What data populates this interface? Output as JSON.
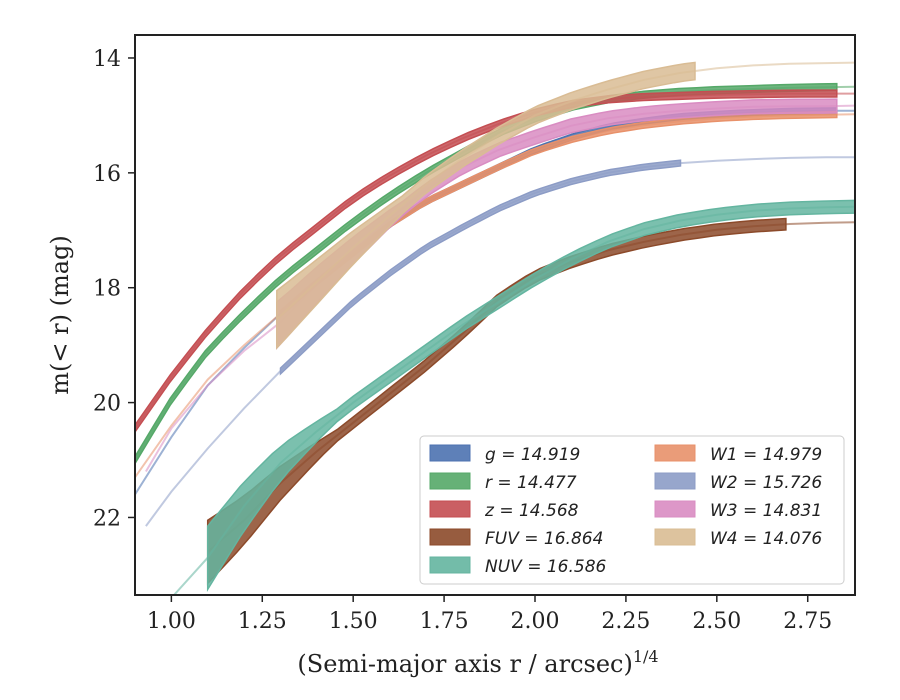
{
  "chart_data": {
    "type": "line",
    "xlabel": "(Semi-major axis r / arcsec)",
    "xlabel_exponent": "1/4",
    "ylabel": "m(< r) (mag)",
    "xlim": [
      0.9,
      2.88
    ],
    "ylim": [
      23.35,
      13.6
    ],
    "y_inverted": true,
    "x_ticks": [
      "1.00",
      "1.25",
      "1.50",
      "1.75",
      "2.00",
      "2.25",
      "2.50",
      "2.75"
    ],
    "x_tick_values": [
      1.0,
      1.25,
      1.5,
      1.75,
      2.0,
      2.25,
      2.5,
      2.75
    ],
    "y_ticks": [
      "14",
      "16",
      "18",
      "20",
      "22"
    ],
    "y_tick_values": [
      14,
      16,
      18,
      20,
      22
    ],
    "legend_placement": "lower-right",
    "series": [
      {
        "name": "g = 14.919",
        "var": "g",
        "value": "14.919",
        "color": "#4c72b0",
        "x": [
          0.9,
          1.0,
          1.1,
          1.2,
          1.3,
          1.4,
          1.5,
          1.6,
          1.7,
          1.8,
          1.9,
          2.0,
          2.1,
          2.2,
          2.3,
          2.4,
          2.5,
          2.6,
          2.7,
          2.8,
          2.88
        ],
        "y": [
          21.6,
          20.6,
          19.7,
          19.05,
          18.45,
          17.9,
          17.4,
          16.9,
          16.5,
          16.2,
          15.9,
          15.6,
          15.38,
          15.2,
          15.1,
          15.02,
          14.98,
          14.95,
          14.93,
          14.92,
          14.92
        ],
        "band_x": [
          1.3,
          2.83
        ],
        "band_halfwidth": 0.05
      },
      {
        "name": "r = 14.477",
        "var": "r",
        "value": "14.477",
        "color": "#55a868",
        "x": [
          0.9,
          1.0,
          1.1,
          1.2,
          1.3,
          1.4,
          1.5,
          1.6,
          1.7,
          1.8,
          1.9,
          2.0,
          2.1,
          2.2,
          2.3,
          2.4,
          2.5,
          2.6,
          2.7,
          2.8,
          2.88
        ],
        "y": [
          21.0,
          19.95,
          19.1,
          18.45,
          17.85,
          17.35,
          16.85,
          16.4,
          16.0,
          15.65,
          15.3,
          15.05,
          14.85,
          14.72,
          14.64,
          14.59,
          14.56,
          14.54,
          14.52,
          14.51,
          14.5
        ],
        "band_x": [
          0.9,
          2.83
        ],
        "band_halfwidth": 0.06
      },
      {
        "name": "z = 14.568",
        "var": "z",
        "value": "14.568",
        "color": "#c44e52",
        "x": [
          0.9,
          1.0,
          1.1,
          1.2,
          1.3,
          1.4,
          1.5,
          1.6,
          1.7,
          1.8,
          1.9,
          2.0,
          2.1,
          2.2,
          2.3,
          2.4,
          2.5,
          2.6,
          2.7,
          2.8,
          2.88
        ],
        "y": [
          20.45,
          19.55,
          18.75,
          18.05,
          17.45,
          16.95,
          16.45,
          16.05,
          15.7,
          15.4,
          15.15,
          14.95,
          14.8,
          14.72,
          14.68,
          14.66,
          14.64,
          14.63,
          14.62,
          14.62,
          14.62
        ],
        "band_x": [
          0.9,
          2.83
        ],
        "band_halfwidth": 0.06
      },
      {
        "name": "FUV = 16.864",
        "var": "FUV",
        "value": "16.864",
        "color": "#8c4a2a",
        "x": [
          1.1,
          1.2,
          1.3,
          1.4,
          1.5,
          1.6,
          1.7,
          1.8,
          1.9,
          2.0,
          2.1,
          2.2,
          2.3,
          2.4,
          2.5,
          2.6,
          2.7,
          2.8,
          2.88
        ],
        "y": [
          22.6,
          22.05,
          21.4,
          20.85,
          20.35,
          19.85,
          19.35,
          18.8,
          18.2,
          17.8,
          17.55,
          17.35,
          17.2,
          17.08,
          16.99,
          16.93,
          16.89,
          16.87,
          16.86
        ],
        "band_x": [
          1.1,
          2.69
        ],
        "band_halfwidth": 0.1,
        "band_start_halfwidth": 0.55
      },
      {
        "name": "NUV = 16.586",
        "var": "NUV",
        "value": "16.586",
        "color": "#64b5a0",
        "x": [
          1.0,
          1.1,
          1.2,
          1.3,
          1.4,
          1.5,
          1.6,
          1.7,
          1.8,
          1.9,
          2.0,
          2.1,
          2.2,
          2.3,
          2.4,
          2.5,
          2.6,
          2.7,
          2.8,
          2.88
        ],
        "y": [
          23.4,
          22.7,
          21.8,
          21.05,
          20.5,
          20.0,
          19.55,
          19.1,
          18.65,
          18.25,
          17.85,
          17.5,
          17.2,
          16.98,
          16.83,
          16.73,
          16.66,
          16.62,
          16.6,
          16.59
        ],
        "band_x": [
          1.1,
          2.88
        ],
        "band_halfwidth": 0.11,
        "band_start_halfwidth": 0.55
      },
      {
        "name": "W1 = 14.979",
        "var": "W1",
        "value": "14.979",
        "color": "#e8916a",
        "x": [
          0.9,
          1.0,
          1.1,
          1.2,
          1.3,
          1.4,
          1.5,
          1.6,
          1.7,
          1.8,
          1.9,
          2.0,
          2.1,
          2.2,
          2.3,
          2.4,
          2.5,
          2.6,
          2.7,
          2.8,
          2.88
        ],
        "y": [
          21.3,
          20.4,
          19.6,
          19.0,
          18.45,
          17.9,
          17.4,
          16.9,
          16.5,
          16.2,
          15.9,
          15.62,
          15.42,
          15.27,
          15.17,
          15.1,
          15.05,
          15.02,
          15.0,
          14.99,
          14.98
        ],
        "band_x": [
          1.3,
          2.83
        ],
        "band_halfwidth": 0.05
      },
      {
        "name": "W2 = 15.726",
        "var": "W2",
        "value": "15.726",
        "color": "#8c9cc6",
        "x": [
          0.93,
          1.0,
          1.1,
          1.2,
          1.3,
          1.4,
          1.5,
          1.6,
          1.7,
          1.8,
          1.9,
          2.0,
          2.1,
          2.2,
          2.3,
          2.4,
          2.5,
          2.6,
          2.7,
          2.8,
          2.88
        ],
        "y": [
          22.15,
          21.55,
          20.8,
          20.1,
          19.45,
          18.85,
          18.25,
          17.75,
          17.3,
          16.95,
          16.62,
          16.35,
          16.15,
          16.0,
          15.9,
          15.83,
          15.79,
          15.76,
          15.74,
          15.73,
          15.73
        ],
        "band_x": [
          1.3,
          2.4
        ],
        "band_halfwidth": 0.05
      },
      {
        "name": "W3 = 14.831",
        "var": "W3",
        "value": "14.831",
        "color": "#d98cc2",
        "x": [
          0.93,
          1.0,
          1.1,
          1.2,
          1.3,
          1.4,
          1.5,
          1.6,
          1.7,
          1.8,
          1.9,
          2.0,
          2.1,
          2.2,
          2.3,
          2.4,
          2.5,
          2.6,
          2.7,
          2.8,
          2.88
        ],
        "y": [
          21.2,
          20.45,
          19.7,
          19.1,
          18.6,
          17.95,
          17.35,
          16.8,
          16.3,
          15.9,
          15.6,
          15.38,
          15.18,
          15.05,
          14.97,
          14.92,
          14.88,
          14.85,
          14.84,
          14.84,
          14.83
        ],
        "band_x": [
          1.29,
          2.83
        ],
        "band_halfwidth": 0.12,
        "band_start_halfwidth": 0.4
      },
      {
        "name": "W4 = 14.076",
        "var": "W4",
        "value": "14.076",
        "color": "#d9bc94",
        "x": [
          1.29,
          1.4,
          1.5,
          1.6,
          1.7,
          1.8,
          1.9,
          2.0,
          2.1,
          2.2,
          2.3,
          2.4,
          2.5,
          2.6,
          2.7,
          2.8,
          2.88
        ],
        "y": [
          18.55,
          17.9,
          17.3,
          16.75,
          16.2,
          15.75,
          15.35,
          15.0,
          14.75,
          14.55,
          14.38,
          14.26,
          14.18,
          14.13,
          14.1,
          14.09,
          14.08
        ],
        "band_x": [
          1.29,
          2.44
        ],
        "band_halfwidth": 0.15,
        "band_start_halfwidth": 0.5
      }
    ]
  }
}
